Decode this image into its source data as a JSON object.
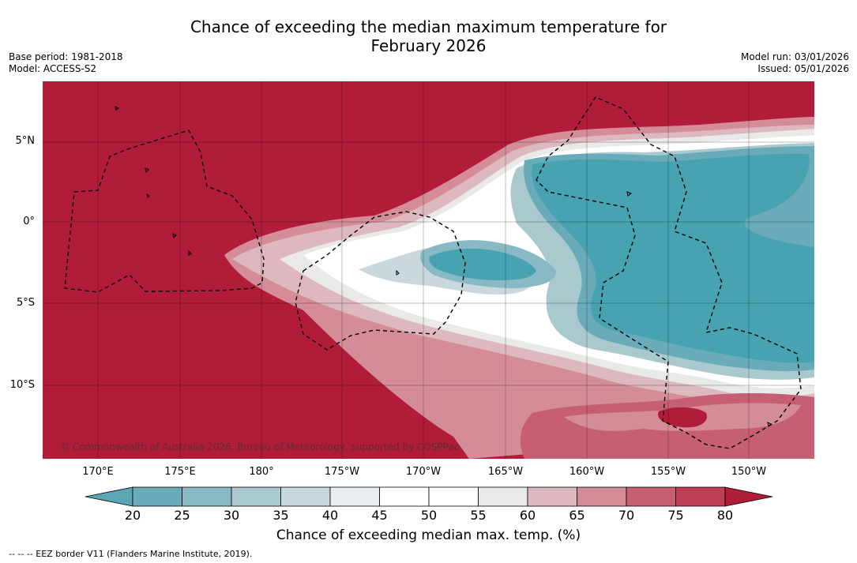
{
  "title": {
    "line1": "Chance of exceeding the median maximum temperature for",
    "line2": "February 2026"
  },
  "meta": {
    "base_period": "Base period: 1981-2018",
    "model": "Model: ACCESS-S2",
    "model_run": "Model run: 03/01/2026",
    "issued": "Issued: 05/01/2026"
  },
  "map": {
    "latitude_labels": [
      "5°N",
      "0°",
      "5°S",
      "10°S"
    ],
    "longitude_labels": [
      "170°E",
      "175°E",
      "180°",
      "175°W",
      "170°W",
      "165°W",
      "160°W",
      "155°W",
      "150°W"
    ],
    "copyright": "© Commonwealth of Australia 2026, Bureau of Meteorology, supported by COSPPac"
  },
  "colorbar": {
    "ticks": [
      "20",
      "25",
      "30",
      "35",
      "40",
      "45",
      "50",
      "55",
      "60",
      "65",
      "70",
      "75",
      "80"
    ],
    "colors": [
      "#5aa6b4",
      "#6aabb9",
      "#88b9c4",
      "#a9c9ce",
      "#c9d8dc",
      "#e8edf0",
      "#ffffff",
      "#ffffff",
      "#e9e9e9",
      "#ddb8bf",
      "#d38c98",
      "#c75f72",
      "#bd3e55",
      "#b11c38"
    ],
    "label": "Chance of exceeding median max. temp. (%)"
  },
  "legend_footnote": "--  --  -- EEZ border V11 (Flanders Marine Institute, 2019)."
}
